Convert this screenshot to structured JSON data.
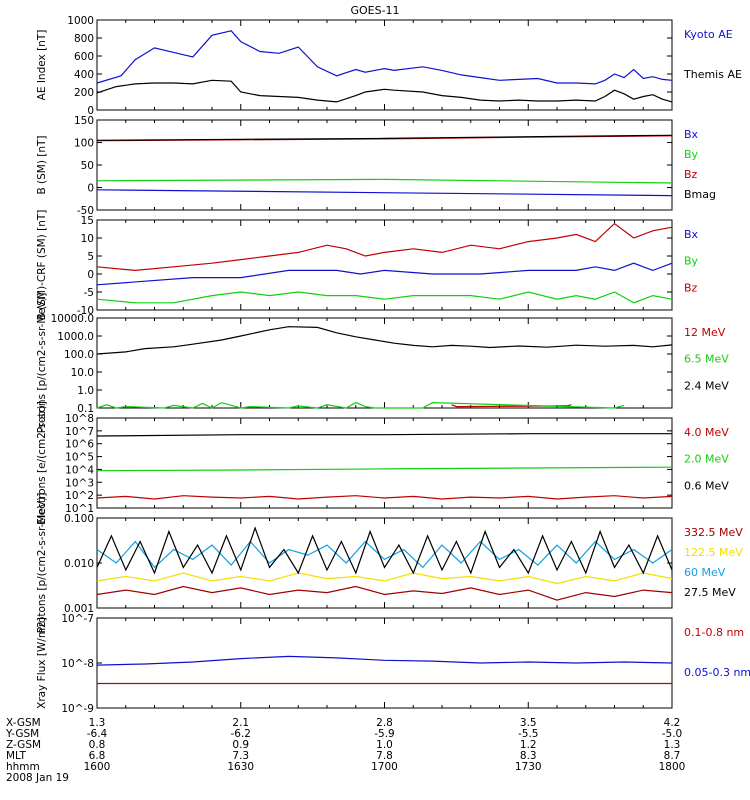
{
  "title": "GOES-11",
  "colors": {
    "black": "#000000",
    "blue": "#1010d0",
    "red": "#c00000",
    "green": "#10d010",
    "yellow": "#f0e000",
    "cyan": "#10a0e0",
    "darkred": "#a00000"
  },
  "x_axis": {
    "rows": [
      {
        "label": "X-GSM",
        "values": [
          "1.3",
          "2.1",
          "2.8",
          "3.5",
          "4.2"
        ]
      },
      {
        "label": "Y-GSM",
        "values": [
          "-6.4",
          "-6.2",
          "-5.9",
          "-5.5",
          "-5.0"
        ]
      },
      {
        "label": "Z-GSM",
        "values": [
          "0.8",
          "0.9",
          "1.0",
          "1.2",
          "1.3"
        ]
      },
      {
        "label": "MLT",
        "values": [
          "6.8",
          "7.3",
          "7.8",
          "8.3",
          "8.7"
        ]
      },
      {
        "label": "hhmm",
        "values": [
          "1600",
          "1630",
          "1700",
          "1730",
          "1800"
        ]
      }
    ],
    "date": "2008 Jan 19"
  },
  "chart_data": [
    {
      "type": "line",
      "ylabel": "AE Index [nT]",
      "yscale": "linear",
      "ylim": [
        0,
        1000
      ],
      "yticks": [
        "0",
        "200",
        "400",
        "600",
        "800",
        "1000"
      ],
      "x_range": [
        0,
        120
      ],
      "series": [
        {
          "name": "Kyoto AE",
          "color": "blue",
          "x": [
            0,
            5,
            8,
            12,
            16,
            20,
            24,
            28,
            30,
            34,
            38,
            42,
            46,
            50,
            54,
            56,
            60,
            62,
            68,
            72,
            76,
            80,
            84,
            88,
            92,
            96,
            100,
            104,
            106,
            108,
            110,
            112,
            114,
            116,
            118,
            120
          ],
          "y": [
            300,
            380,
            560,
            690,
            640,
            590,
            830,
            880,
            760,
            650,
            630,
            700,
            480,
            380,
            450,
            420,
            460,
            440,
            480,
            440,
            390,
            360,
            330,
            340,
            350,
            300,
            300,
            290,
            330,
            400,
            360,
            450,
            350,
            370,
            340,
            330
          ]
        },
        {
          "name": "Themis AE",
          "color": "black",
          "x": [
            0,
            4,
            8,
            12,
            16,
            20,
            24,
            28,
            30,
            34,
            38,
            42,
            46,
            50,
            54,
            56,
            60,
            62,
            68,
            72,
            76,
            80,
            84,
            88,
            92,
            96,
            100,
            104,
            106,
            108,
            110,
            112,
            114,
            116,
            118,
            120
          ],
          "y": [
            190,
            260,
            290,
            300,
            300,
            290,
            330,
            320,
            200,
            160,
            150,
            140,
            110,
            90,
            160,
            200,
            230,
            220,
            200,
            160,
            140,
            110,
            100,
            110,
            100,
            100,
            110,
            100,
            150,
            220,
            180,
            120,
            150,
            170,
            120,
            90
          ]
        }
      ]
    },
    {
      "type": "line",
      "ylabel": "B (SM) [nT]",
      "yscale": "linear",
      "ylim": [
        -50,
        150
      ],
      "yticks": [
        "-50",
        "0",
        "50",
        "100",
        "150"
      ],
      "x_range": [
        0,
        120
      ],
      "series": [
        {
          "name": "Bx",
          "color": "blue",
          "x": [
            0,
            120
          ],
          "y": [
            -5,
            -18
          ]
        },
        {
          "name": "By",
          "color": "green",
          "x": [
            0,
            60,
            120
          ],
          "y": [
            15,
            18,
            10
          ]
        },
        {
          "name": "Bz",
          "color": "red",
          "x": [
            0,
            30,
            60,
            90,
            120
          ],
          "y": [
            104,
            106,
            108,
            112,
            115
          ]
        },
        {
          "name": "Bmag",
          "color": "black",
          "x": [
            0,
            30,
            60,
            90,
            120
          ],
          "y": [
            105,
            107,
            109,
            113,
            116
          ]
        }
      ]
    },
    {
      "type": "line",
      "ylabel": "B (SM)-CRF (SM) [nT]",
      "yscale": "linear",
      "ylim": [
        -10,
        15
      ],
      "yticks": [
        "-10",
        "-5",
        "0",
        "5",
        "10",
        "15"
      ],
      "x_range": [
        0,
        120
      ],
      "series": [
        {
          "name": "Bx",
          "color": "blue",
          "x": [
            0,
            10,
            20,
            30,
            40,
            50,
            55,
            60,
            70,
            80,
            90,
            100,
            104,
            108,
            112,
            116,
            120
          ],
          "y": [
            -3,
            -2,
            -1,
            -1,
            1,
            1,
            0,
            1,
            0,
            0,
            1,
            1,
            2,
            1,
            3,
            1,
            3
          ]
        },
        {
          "name": "By",
          "color": "green",
          "x": [
            0,
            8,
            16,
            24,
            30,
            36,
            42,
            48,
            54,
            60,
            66,
            72,
            78,
            84,
            90,
            96,
            100,
            104,
            108,
            112,
            116,
            120
          ],
          "y": [
            -7,
            -8,
            -8,
            -6,
            -5,
            -6,
            -5,
            -6,
            -6,
            -7,
            -6,
            -6,
            -6,
            -7,
            -5,
            -7,
            -6,
            -7,
            -5,
            -8,
            -6,
            -7
          ]
        },
        {
          "name": "Bz",
          "color": "red",
          "x": [
            0,
            8,
            16,
            24,
            30,
            36,
            42,
            48,
            52,
            56,
            60,
            66,
            72,
            78,
            84,
            90,
            96,
            100,
            104,
            108,
            112,
            116,
            120
          ],
          "y": [
            2,
            1,
            2,
            3,
            4,
            5,
            6,
            8,
            7,
            5,
            6,
            7,
            6,
            8,
            7,
            9,
            10,
            11,
            9,
            14,
            10,
            12,
            13
          ]
        }
      ]
    },
    {
      "type": "line",
      "ylabel": "Protons [p/(cm2-s-sr-MeV)]",
      "yscale": "log",
      "ylim": [
        0.1,
        10000
      ],
      "yticks": [
        "0.1",
        "1.0",
        "10.0",
        "100.0",
        "1000.0",
        "10000.0"
      ],
      "x_range": [
        0,
        120
      ],
      "series": [
        {
          "name": "12 MeV",
          "color": "red",
          "x": [
            74,
            75,
            98,
            99
          ],
          "y": [
            0.15,
            0.12,
            0.13,
            0.15
          ]
        },
        {
          "name": "6.5 MeV",
          "color": "green",
          "x": [
            0,
            2,
            4,
            6,
            14,
            16,
            20,
            22,
            24,
            26,
            30,
            32,
            40,
            42,
            46,
            48,
            52,
            54,
            56,
            58,
            68,
            70,
            108,
            110
          ],
          "y": [
            0.1,
            0.15,
            0.1,
            0.12,
            0.1,
            0.14,
            0.1,
            0.18,
            0.1,
            0.2,
            0.1,
            0.12,
            0.1,
            0.13,
            0.1,
            0.15,
            0.1,
            0.2,
            0.12,
            0.1,
            0.1,
            0.2,
            0.1,
            0.14
          ]
        },
        {
          "name": "2.4 MeV",
          "color": "black",
          "x": [
            0,
            6,
            10,
            16,
            20,
            26,
            30,
            36,
            40,
            46,
            50,
            54,
            58,
            62,
            66,
            70,
            74,
            78,
            82,
            88,
            94,
            100,
            106,
            112,
            116,
            120
          ],
          "y": [
            100,
            130,
            200,
            250,
            350,
            600,
            1000,
            2200,
            3300,
            3000,
            1500,
            900,
            600,
            400,
            300,
            250,
            300,
            270,
            230,
            280,
            240,
            310,
            270,
            300,
            250,
            320
          ]
        }
      ]
    },
    {
      "type": "line",
      "ylabel": "Electrons [e/(cm2-s-sr)]",
      "yscale": "log",
      "ylim": [
        10,
        100000000
      ],
      "yticks": [
        "10^1",
        "10^2",
        "10^3",
        "10^4",
        "10^5",
        "10^6",
        "10^7",
        "10^8"
      ],
      "x_range": [
        0,
        120
      ],
      "series": [
        {
          "name": "4.0 MeV",
          "color": "red",
          "x": [
            0,
            6,
            12,
            18,
            24,
            30,
            36,
            42,
            48,
            54,
            60,
            66,
            72,
            78,
            84,
            90,
            96,
            102,
            108,
            114,
            120
          ],
          "y": [
            60,
            80,
            50,
            90,
            70,
            60,
            80,
            50,
            70,
            90,
            60,
            80,
            50,
            70,
            60,
            80,
            50,
            70,
            90,
            60,
            80
          ]
        },
        {
          "name": "2.0 MeV",
          "color": "green",
          "x": [
            0,
            30,
            60,
            90,
            120
          ],
          "y": [
            8000,
            9000,
            11000,
            13000,
            15000
          ]
        },
        {
          "name": "0.6 MeV",
          "color": "black",
          "x": [
            0,
            30,
            60,
            90,
            120
          ],
          "y": [
            4000000,
            5000000,
            5000000,
            6000000,
            6000000
          ]
        }
      ]
    },
    {
      "type": "line",
      "ylabel": "Protons [p/(cm2-s-sr-MeV)]",
      "yscale": "log",
      "ylim": [
        0.001,
        0.1
      ],
      "yticks": [
        "0.001",
        "0.010",
        "0.100"
      ],
      "x_range": [
        0,
        120
      ],
      "series": [
        {
          "name": "332.5 MeV",
          "color": "darkred",
          "x": [
            0,
            6,
            12,
            18,
            24,
            30,
            36,
            42,
            48,
            54,
            60,
            66,
            72,
            78,
            84,
            90,
            96,
            102,
            108,
            114,
            120
          ],
          "y": [
            0.002,
            0.0025,
            0.002,
            0.003,
            0.0022,
            0.0028,
            0.002,
            0.0025,
            0.0022,
            0.003,
            0.002,
            0.0024,
            0.0021,
            0.0028,
            0.002,
            0.0025,
            0.0015,
            0.0022,
            0.0018,
            0.0025,
            0.0022
          ]
        },
        {
          "name": "122.5 MeV",
          "color": "yellow",
          "x": [
            0,
            6,
            12,
            18,
            24,
            30,
            36,
            42,
            48,
            54,
            60,
            66,
            72,
            78,
            84,
            90,
            96,
            102,
            108,
            114,
            120
          ],
          "y": [
            0.004,
            0.005,
            0.004,
            0.006,
            0.004,
            0.005,
            0.004,
            0.006,
            0.0045,
            0.005,
            0.004,
            0.006,
            0.0045,
            0.005,
            0.004,
            0.005,
            0.0035,
            0.005,
            0.004,
            0.006,
            0.0045
          ]
        },
        {
          "name": "60 MeV",
          "color": "cyan",
          "x": [
            0,
            4,
            8,
            12,
            16,
            20,
            24,
            28,
            32,
            36,
            40,
            44,
            48,
            52,
            56,
            60,
            64,
            68,
            72,
            76,
            80,
            84,
            88,
            92,
            96,
            100,
            104,
            108,
            112,
            116,
            120
          ],
          "y": [
            0.02,
            0.01,
            0.03,
            0.008,
            0.02,
            0.012,
            0.025,
            0.009,
            0.03,
            0.01,
            0.02,
            0.015,
            0.025,
            0.01,
            0.03,
            0.012,
            0.02,
            0.008,
            0.025,
            0.01,
            0.03,
            0.012,
            0.02,
            0.009,
            0.025,
            0.01,
            0.03,
            0.012,
            0.02,
            0.01,
            0.02
          ]
        },
        {
          "name": "27.5 MeV",
          "color": "black",
          "x": [
            0,
            3,
            6,
            9,
            12,
            15,
            18,
            21,
            24,
            27,
            30,
            33,
            36,
            39,
            42,
            45,
            48,
            51,
            54,
            57,
            60,
            63,
            66,
            69,
            72,
            75,
            78,
            81,
            84,
            87,
            90,
            93,
            96,
            99,
            102,
            105,
            108,
            111,
            114,
            117,
            120
          ],
          "y": [
            0.008,
            0.04,
            0.007,
            0.03,
            0.006,
            0.05,
            0.008,
            0.025,
            0.006,
            0.04,
            0.007,
            0.06,
            0.008,
            0.02,
            0.006,
            0.04,
            0.007,
            0.03,
            0.006,
            0.05,
            0.008,
            0.025,
            0.006,
            0.04,
            0.007,
            0.03,
            0.006,
            0.05,
            0.008,
            0.02,
            0.006,
            0.04,
            0.007,
            0.03,
            0.006,
            0.05,
            0.008,
            0.025,
            0.006,
            0.04,
            0.007
          ]
        }
      ]
    },
    {
      "type": "line",
      "ylabel": "Xray Flux [W/m2]",
      "yscale": "log",
      "ylim": [
        1e-09,
        1e-07
      ],
      "yticks": [
        "10^-9",
        "10^-8",
        "10^-7"
      ],
      "x_range": [
        0,
        120
      ],
      "series": [
        {
          "name": "0.1-0.8 nm",
          "color": "red",
          "x": [
            0,
            120
          ],
          "y": [
            3.5e-09,
            3.5e-09
          ]
        },
        {
          "name": "0.05-0.3 nm",
          "color": "blue",
          "x": [
            0,
            10,
            20,
            30,
            40,
            50,
            60,
            70,
            80,
            90,
            100,
            110,
            120
          ],
          "y": [
            9e-09,
            9.5e-09,
            1.05e-08,
            1.25e-08,
            1.4e-08,
            1.3e-08,
            1.15e-08,
            1.1e-08,
            1e-08,
            1.05e-08,
            1e-08,
            1.05e-08,
            1e-08
          ]
        }
      ]
    }
  ]
}
